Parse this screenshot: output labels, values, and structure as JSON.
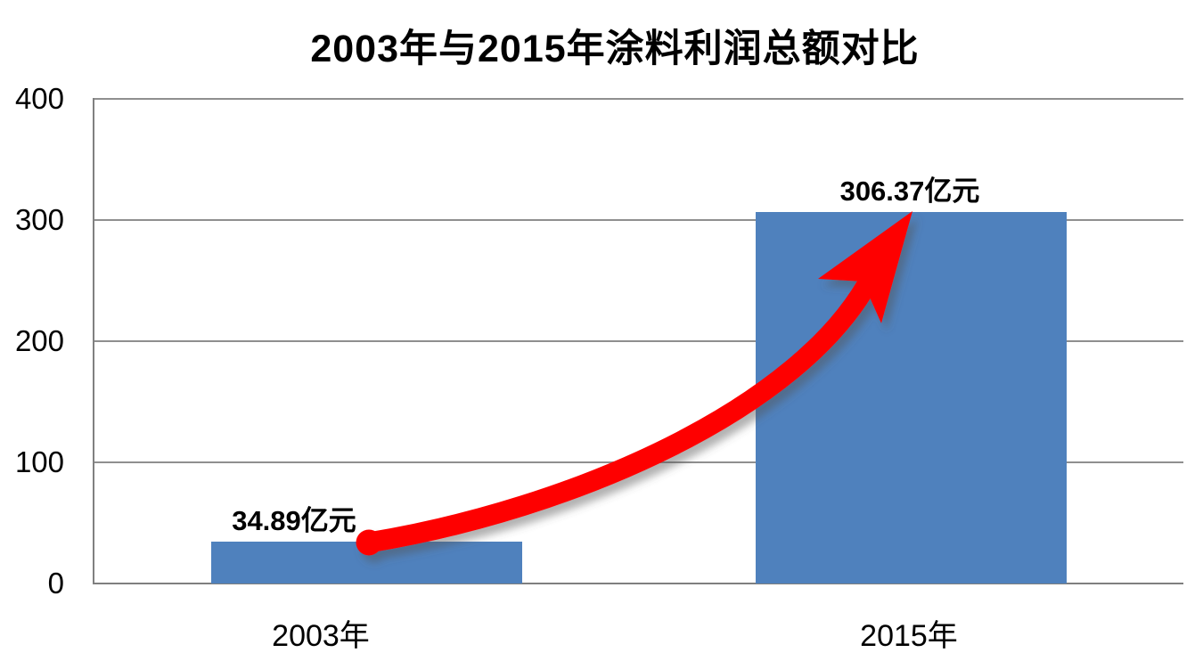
{
  "chart_data": {
    "type": "bar",
    "title": "2003年与2015年涂料利润总额对比",
    "categories": [
      "2003年",
      "2015年"
    ],
    "values": [
      34.89,
      306.37
    ],
    "unit": "亿元",
    "data_labels": [
      "34.89亿元",
      "306.37亿元"
    ],
    "xlabel": "",
    "ylabel": "",
    "ylim": [
      0,
      400
    ],
    "ytick_labels": [
      "400",
      "300",
      "200",
      "100",
      "0"
    ],
    "grid": "horizontal gridlines every 100, full plot width",
    "legend": "none",
    "bar_color": "#4F81BD",
    "gridline_color": "#8F8F8F",
    "axis_color": "#7F7F7F",
    "text_color": "#000000",
    "annotation": {
      "shape": "curved growth arrow with round tail dot and barbed head",
      "color": "#FF0000",
      "from": "top of 2003 bar",
      "to": "top of 2015 bar"
    }
  }
}
